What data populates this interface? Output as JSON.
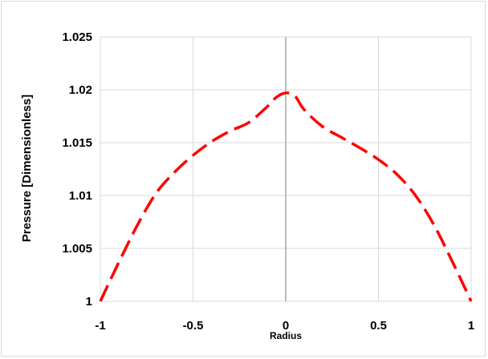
{
  "chart_data": {
    "type": "line",
    "title": "",
    "xlabel": "Radius",
    "ylabel": "Pressure [Dimensionless]",
    "xlim": [
      -1,
      1
    ],
    "ylim": [
      1,
      1.025
    ],
    "x_ticks": [
      -1,
      -0.5,
      0,
      0.5,
      1
    ],
    "x_tick_labels": [
      "-1",
      "-0.5",
      "0",
      "0.5",
      "1"
    ],
    "y_ticks": [
      1,
      1.005,
      1.01,
      1.015,
      1.02,
      1.025
    ],
    "y_tick_labels": [
      "1",
      "1.005",
      "1.01",
      "1.015",
      "1.02",
      "1.025"
    ],
    "grid": true,
    "legend": "none",
    "series": [
      {
        "color": "#ff0000",
        "line_style": "dashed",
        "x": [
          -1,
          -0.9,
          -0.8,
          -0.7,
          -0.6,
          -0.5,
          -0.4,
          -0.3,
          -0.2,
          -0.1,
          -0.05,
          0,
          0.05,
          0.1,
          0.2,
          0.3,
          0.4,
          0.5,
          0.6,
          0.7,
          0.8,
          0.9,
          1
        ],
        "y": [
          1.0,
          1.0037,
          1.0072,
          1.0102,
          1.0122,
          1.0138,
          1.0151,
          1.0161,
          1.0169,
          1.0184,
          1.0193,
          1.0197,
          1.0194,
          1.0181,
          1.0165,
          1.0155,
          1.0145,
          1.0134,
          1.012,
          1.01,
          1.0072,
          1.0037,
          1.0
        ]
      }
    ]
  }
}
